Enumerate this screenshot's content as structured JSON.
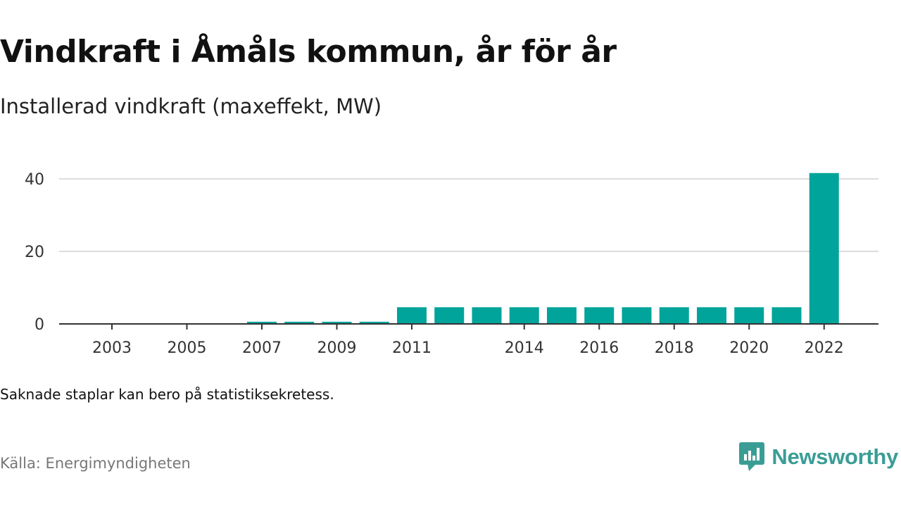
{
  "header": {
    "title": "Vindkraft i Åmåls kommun, år för år",
    "subtitle": "Installerad vindkraft (maxeffekt, MW)"
  },
  "footer": {
    "note": "Saknade staplar kan bero på statistiksekretess.",
    "source": "Källa: Energimyndigheten",
    "brand": "Newsworthy"
  },
  "colors": {
    "bar": "#00a49a",
    "grid": "#dddddd",
    "axis": "#333333",
    "brand": "#3a9d95"
  },
  "chart_data": {
    "type": "bar",
    "title": "Vindkraft i Åmåls kommun, år för år",
    "subtitle": "Installerad vindkraft (maxeffekt, MW)",
    "xlabel": "",
    "ylabel": "",
    "categories": [
      "2003",
      "2004",
      "2005",
      "2006",
      "2007",
      "2008",
      "2009",
      "2010",
      "2011",
      "2012",
      "2013",
      "2014",
      "2015",
      "2016",
      "2017",
      "2018",
      "2019",
      "2020",
      "2021",
      "2022"
    ],
    "values": [
      0,
      0,
      0,
      0,
      0.6,
      0.6,
      0.6,
      0.6,
      4.6,
      4.6,
      4.6,
      4.6,
      4.6,
      4.6,
      4.6,
      4.6,
      4.6,
      4.6,
      4.6,
      41.6
    ],
    "ylim": [
      0,
      40
    ],
    "yticks": [
      0,
      20,
      40
    ],
    "xtick_labels": [
      "2003",
      "2005",
      "2007",
      "2009",
      "2011",
      "2014",
      "2016",
      "2018",
      "2020",
      "2022"
    ],
    "grid": true,
    "legend": "none"
  }
}
